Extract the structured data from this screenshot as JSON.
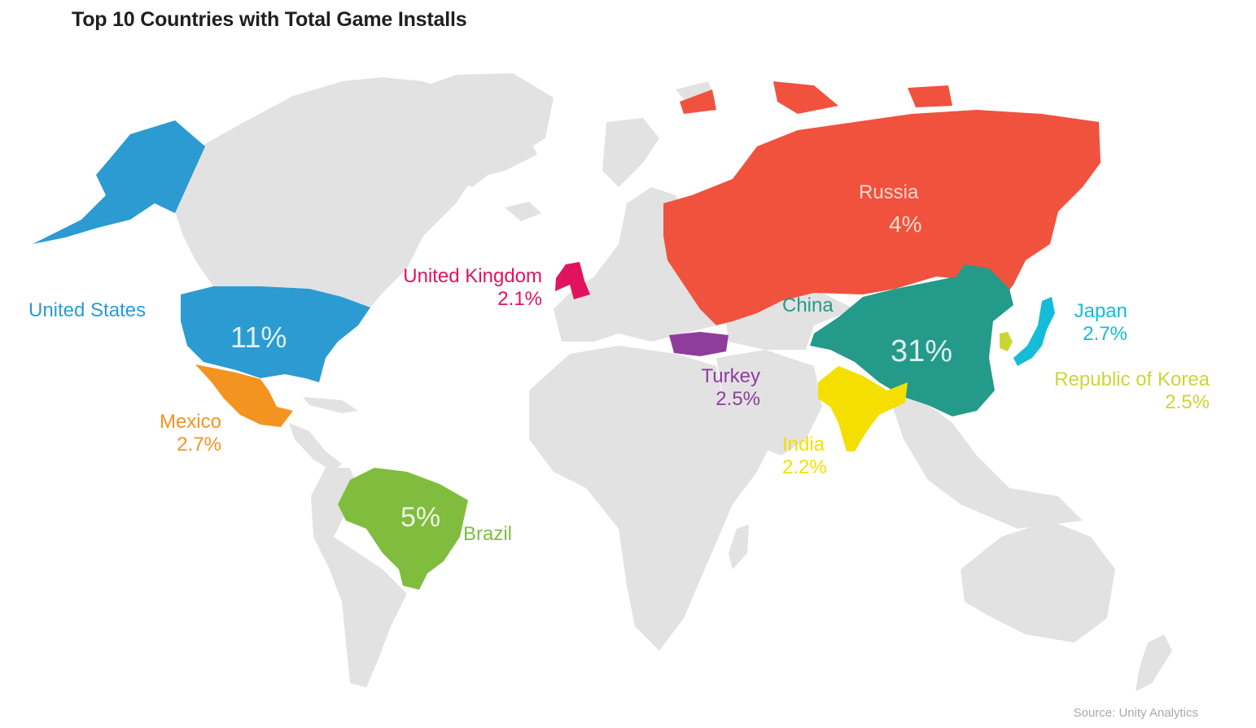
{
  "title": "Top 10 Countries with Total Game Installs",
  "source": "Source: Unity Analytics",
  "colors": {
    "land": "#e2e2e2",
    "united_states": "#2b9bd2",
    "mexico": "#f39421",
    "brazil": "#80bd3f",
    "united_kingdom": "#e2135e",
    "turkey": "#8e3d9d",
    "russia": "#f0523e",
    "china": "#249a8a",
    "india": "#f4df00",
    "japan": "#14bcd8",
    "korea": "#cbd636"
  },
  "countries": [
    {
      "key": "united_states",
      "name": "United States",
      "value": "11%"
    },
    {
      "key": "mexico",
      "name": "Mexico",
      "value": "2.7%"
    },
    {
      "key": "brazil",
      "name": "Brazil",
      "value": "5%"
    },
    {
      "key": "united_kingdom",
      "name": "United Kingdom",
      "value": "2.1%"
    },
    {
      "key": "turkey",
      "name": "Turkey",
      "value": "2.5%"
    },
    {
      "key": "russia",
      "name": "Russia",
      "value": "4%"
    },
    {
      "key": "china",
      "name": "China",
      "value": "31%"
    },
    {
      "key": "india",
      "name": "India",
      "value": "2.2%"
    },
    {
      "key": "japan",
      "name": "Japan",
      "value": "2.7%"
    },
    {
      "key": "korea",
      "name": "Republic of Korea",
      "value": "2.5%"
    }
  ]
}
